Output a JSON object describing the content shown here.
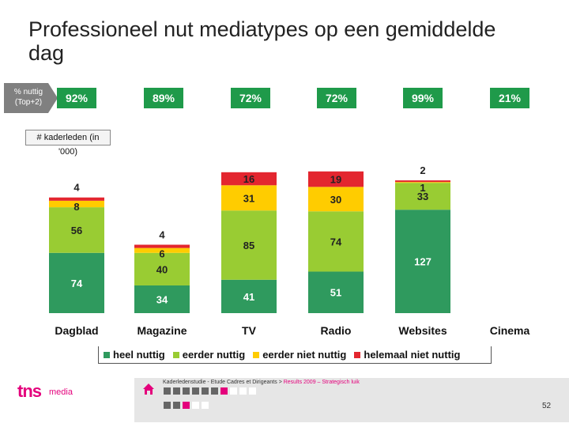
{
  "title": "Professioneel nut mediatypes op een gemiddelde dag",
  "nuttig_tag": {
    "line1": "% nuttig",
    "line2": "(Top+2)"
  },
  "nuttig_values": [
    "92%",
    "89%",
    "72%",
    "72%",
    "99%",
    "21%"
  ],
  "kader_label": "# kaderleden (in '000)",
  "colors": {
    "heel_nuttig": "#2f9a5e",
    "eerder_nuttig": "#99cc33",
    "eerder_niet_nuttig": "#ffcc00",
    "helemaal_niet_nuttig": "#e3262f",
    "pct_box": "#1f9a4a",
    "tag_gray": "#808080"
  },
  "chart_data": {
    "type": "bar",
    "stacked": true,
    "categories": [
      "Dagblad",
      "Magazine",
      "TV",
      "Radio",
      "Websites",
      "Cinema"
    ],
    "series": [
      {
        "name": "heel nuttig",
        "values": [
          74,
          34,
          41,
          51,
          127,
          null
        ]
      },
      {
        "name": "eerder nuttig",
        "values": [
          56,
          40,
          85,
          74,
          33,
          null
        ]
      },
      {
        "name": "eerder niet nuttig",
        "values": [
          8,
          6,
          31,
          30,
          1,
          null
        ]
      },
      {
        "name": "helemaal niet nuttig",
        "values": [
          4,
          4,
          16,
          19,
          2,
          null
        ]
      }
    ],
    "legend_position": "bottom",
    "grid": false
  },
  "footer": {
    "text_main": "Kaderledenstudie - Etude Cadres et Dirigeants > ",
    "text_pink": "Results 2009 – Strategisch luik",
    "page": "52"
  },
  "logo": {
    "tns": "tns",
    "media": "media"
  }
}
